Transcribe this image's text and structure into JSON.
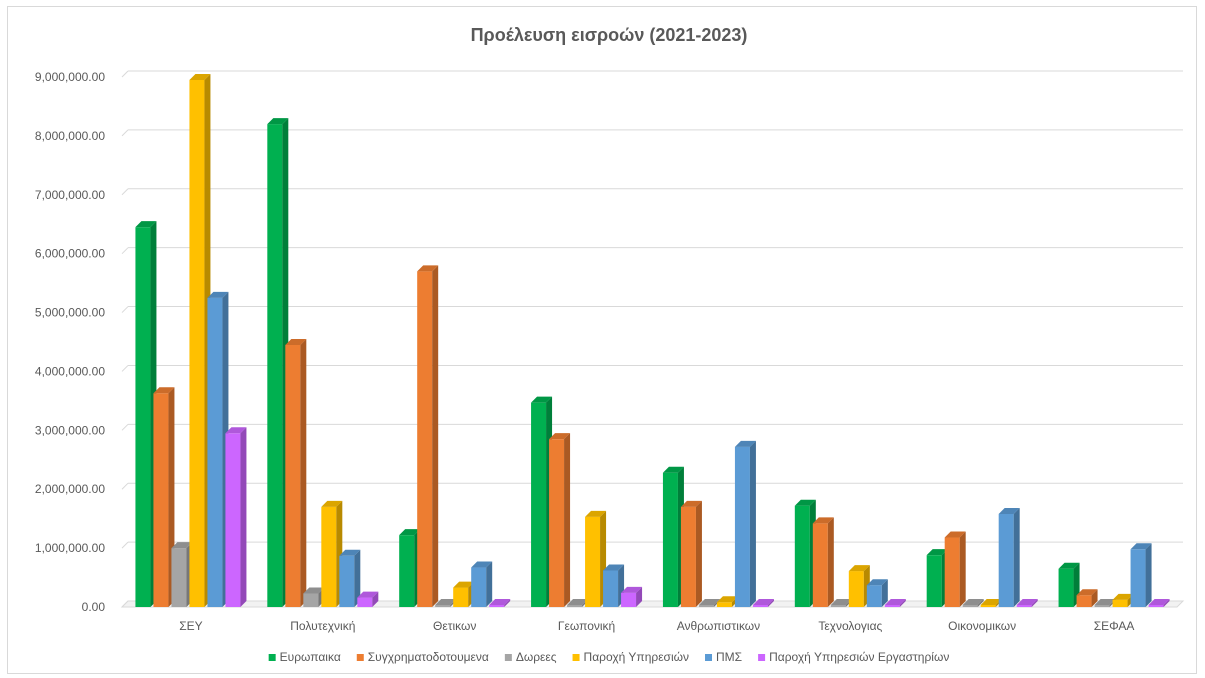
{
  "chart_data": {
    "type": "bar",
    "title": "Προέλευση εισροών (2021-2023)",
    "categories": [
      "ΣΕΥ",
      "Πολυτεχνική",
      "Θετικων",
      "Γεωπονική",
      "Ανθρωπιστικων",
      "Τεχνολογιας",
      "Οικονομικων",
      "ΣΕΦΑΑ"
    ],
    "ylim": [
      0,
      9000000
    ],
    "yticks": [
      0,
      1000000,
      2000000,
      3000000,
      4000000,
      5000000,
      6000000,
      7000000,
      8000000,
      9000000
    ],
    "ytick_labels": [
      "0.00",
      "1,000,000.00",
      "2,000,000.00",
      "3,000,000.00",
      "4,000,000.00",
      "5,000,000.00",
      "6,000,000.00",
      "7,000,000.00",
      "8,000,000.00",
      "9,000,000.00"
    ],
    "grid": true,
    "legend_position": "bottom",
    "series": [
      {
        "name": "Ευρωπαικα",
        "color": "#00b050",
        "values": [
          6450000,
          8200000,
          1220000,
          3470000,
          2280000,
          1720000,
          880000,
          650000
        ]
      },
      {
        "name": "Συγχρηματοδοτουμενα",
        "color": "#ed7d31",
        "values": [
          3630000,
          4450000,
          5700000,
          2850000,
          1700000,
          1420000,
          1180000,
          200000
        ]
      },
      {
        "name": "Δωρεες",
        "color": "#a5a5a5",
        "values": [
          1000000,
          230000,
          20000,
          20000,
          20000,
          10000,
          20000,
          10000
        ]
      },
      {
        "name": "Παροχή Υπηρεσιών",
        "color": "#ffc000",
        "values": [
          8950000,
          1700000,
          330000,
          1530000,
          80000,
          610000,
          30000,
          120000
        ]
      },
      {
        "name": "ΠΜΣ",
        "color": "#5b9bd5",
        "values": [
          5250000,
          870000,
          670000,
          620000,
          2720000,
          370000,
          1580000,
          980000
        ]
      },
      {
        "name": "Παροχή Υπηρεσιών Εργαστηρίων",
        "color": "#cc66ff",
        "values": [
          2950000,
          160000,
          0,
          240000,
          0,
          0,
          0,
          0
        ]
      }
    ]
  }
}
